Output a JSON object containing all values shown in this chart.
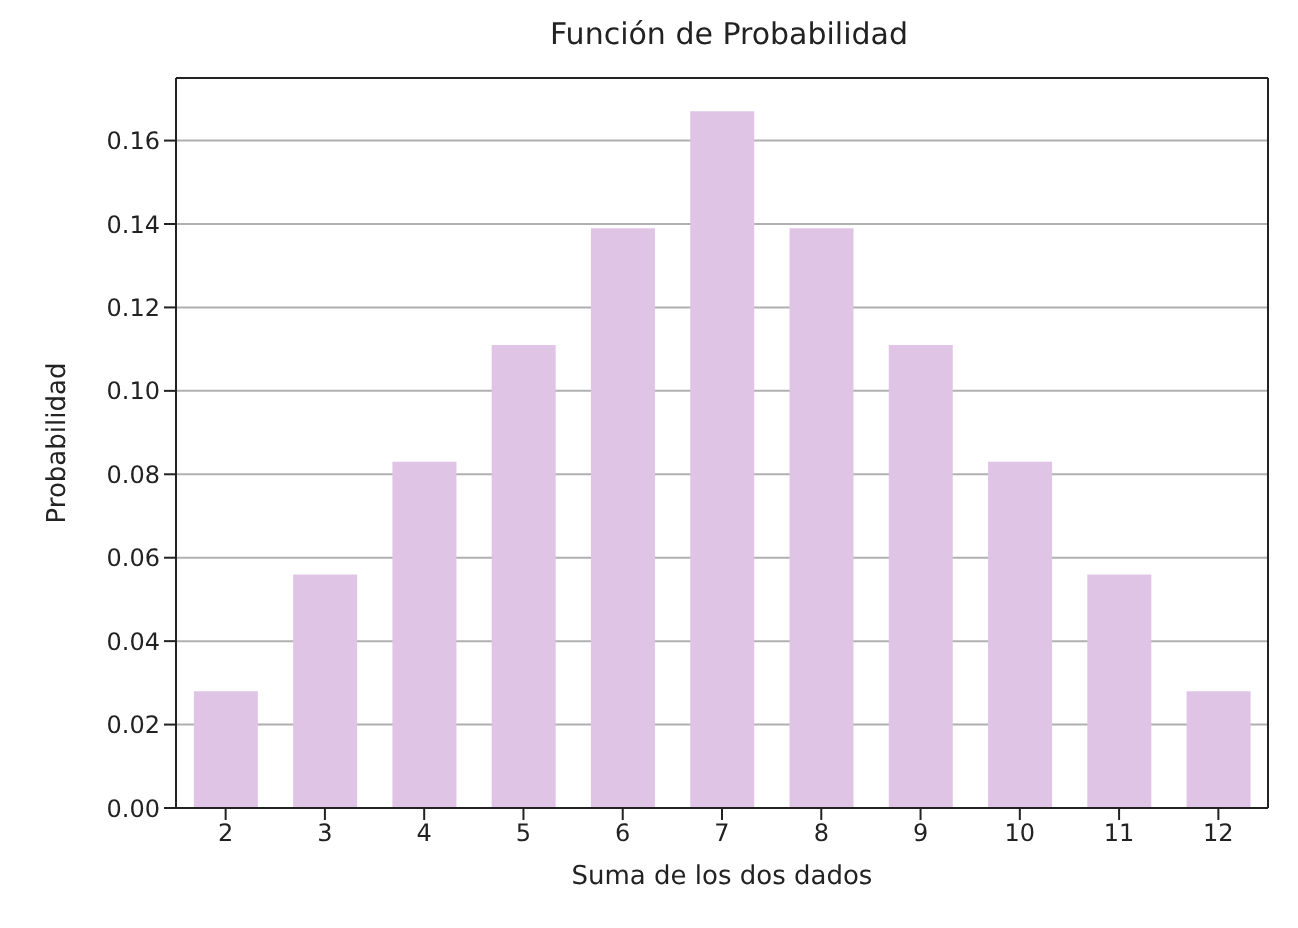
{
  "chart_data": {
    "type": "bar",
    "title": "Función de Probabilidad",
    "xlabel": "Suma de los dos dados",
    "ylabel": "Probabilidad",
    "categories": [
      "2",
      "3",
      "4",
      "5",
      "6",
      "7",
      "8",
      "9",
      "10",
      "11",
      "12"
    ],
    "values": [
      0.028,
      0.056,
      0.083,
      0.111,
      0.139,
      0.167,
      0.139,
      0.111,
      0.083,
      0.056,
      0.028
    ],
    "color": "#e0c4e6",
    "ylim": [
      0,
      0.175
    ],
    "yticks": [
      {
        "value": 0,
        "label": "0.00"
      },
      0.02,
      0.04,
      0.06,
      0.08,
      {
        "value": 0.1,
        "label": "0.10"
      },
      0.12,
      0.14,
      0.16
    ],
    "grid": "y"
  }
}
